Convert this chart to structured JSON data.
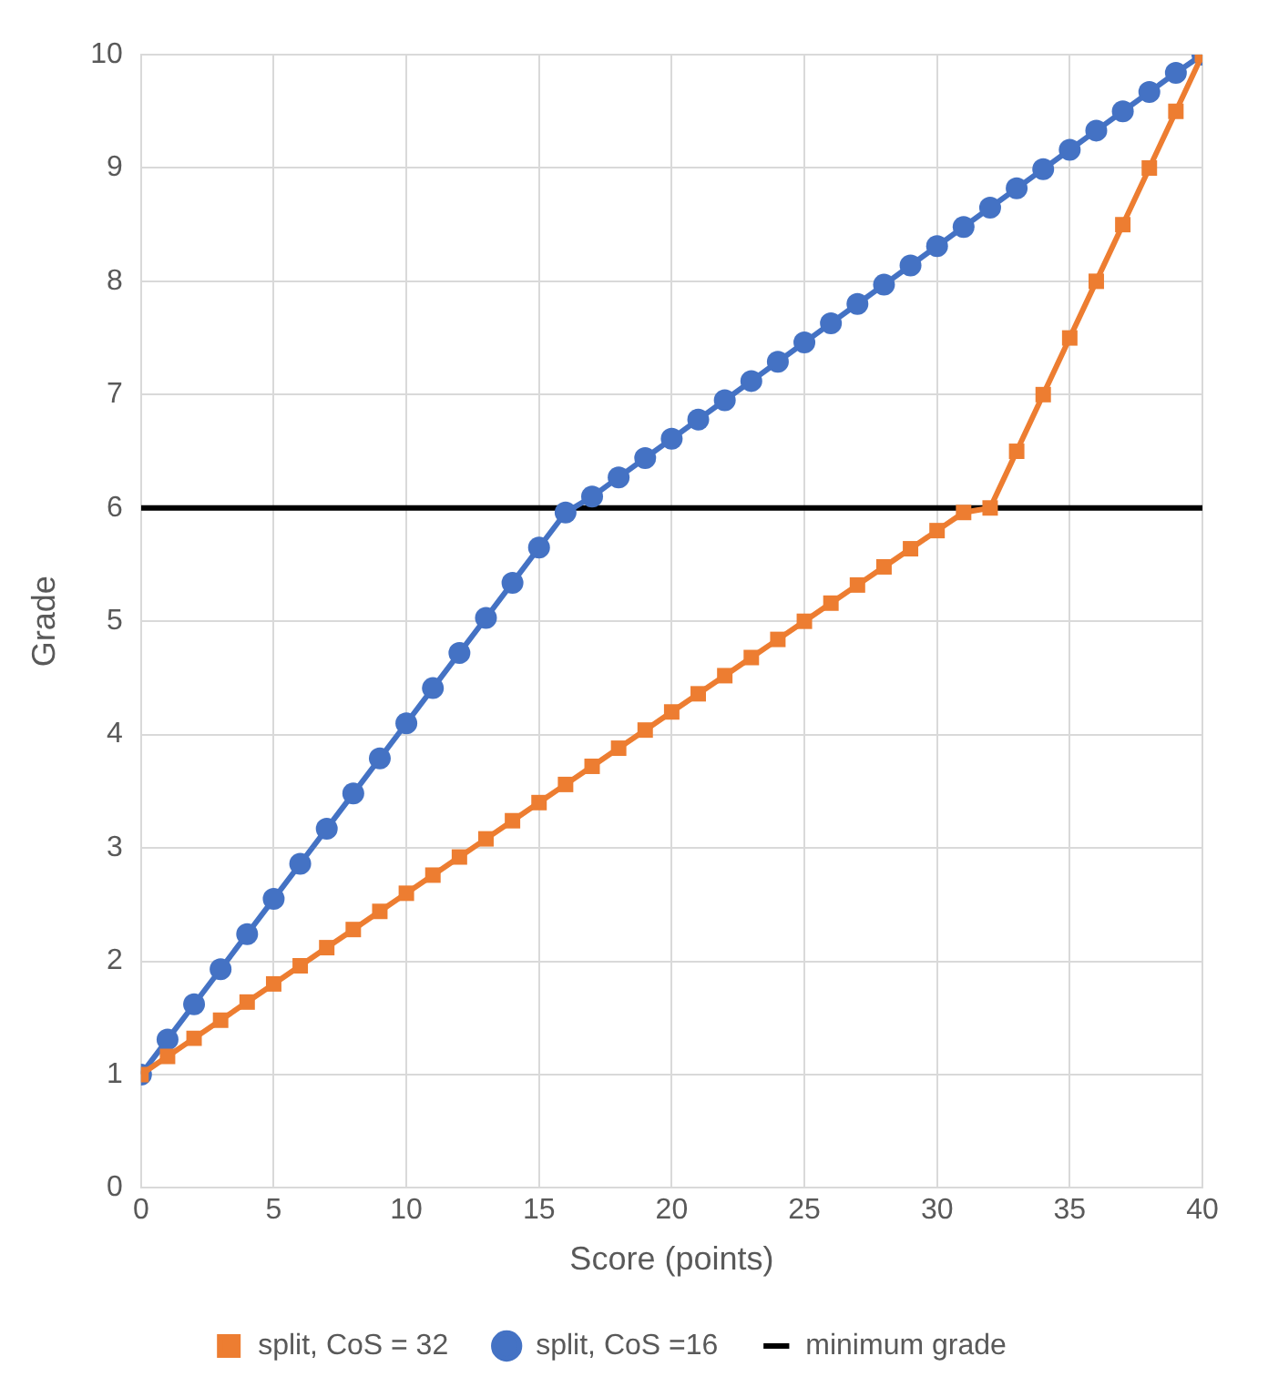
{
  "chart_data": {
    "type": "line",
    "xlabel": "Score (points)",
    "ylabel": "Grade",
    "x": [
      0,
      1,
      2,
      3,
      4,
      5,
      6,
      7,
      8,
      9,
      10,
      11,
      12,
      13,
      14,
      15,
      16,
      17,
      18,
      19,
      20,
      21,
      22,
      23,
      24,
      25,
      26,
      27,
      28,
      29,
      30,
      31,
      32,
      33,
      34,
      35,
      36,
      37,
      38,
      39,
      40
    ],
    "series": [
      {
        "name": "split, CoS = 32",
        "color": "#ed7d31",
        "marker": "square",
        "values": [
          1.0,
          1.16,
          1.32,
          1.48,
          1.64,
          1.8,
          1.96,
          2.12,
          2.28,
          2.44,
          2.6,
          2.76,
          2.92,
          3.08,
          3.24,
          3.4,
          3.56,
          3.72,
          3.88,
          4.04,
          4.2,
          4.36,
          4.52,
          4.68,
          4.84,
          5.0,
          5.16,
          5.32,
          5.48,
          5.64,
          5.8,
          5.96,
          6.0,
          6.5,
          7,
          7.5,
          8,
          8.5,
          9,
          9.5,
          10
        ]
      },
      {
        "name": "split, CoS =16",
        "color": "#4472c4",
        "marker": "circle",
        "values": [
          1,
          1.31,
          1.62,
          1.93,
          2.24,
          2.55,
          2.86,
          3.17,
          3.48,
          3.79,
          4.1,
          4.41,
          4.72,
          5.03,
          5.34,
          5.65,
          5.96,
          6.1,
          6.27,
          6.44,
          6.61,
          6.78,
          6.95,
          7.12,
          7.29,
          7.46,
          7.63,
          7.8,
          7.97,
          8.14,
          8.31,
          8.48,
          8.65,
          8.82,
          8.99,
          9.16,
          9.33,
          9.5,
          9.67,
          9.84,
          10
        ]
      }
    ],
    "ref_lines": [
      {
        "axis": "y",
        "value": 6,
        "label": "minimum grade",
        "color": "#000000"
      }
    ],
    "xlim": [
      0,
      40
    ],
    "xticks": [
      0,
      5,
      10,
      15,
      20,
      25,
      30,
      35,
      40
    ],
    "ylim": [
      0,
      10
    ],
    "yticks": [
      0,
      1,
      2,
      3,
      4,
      5,
      6,
      7,
      8,
      9,
      10
    ],
    "grid": true,
    "legend": "bottom",
    "line_style": "solid"
  }
}
